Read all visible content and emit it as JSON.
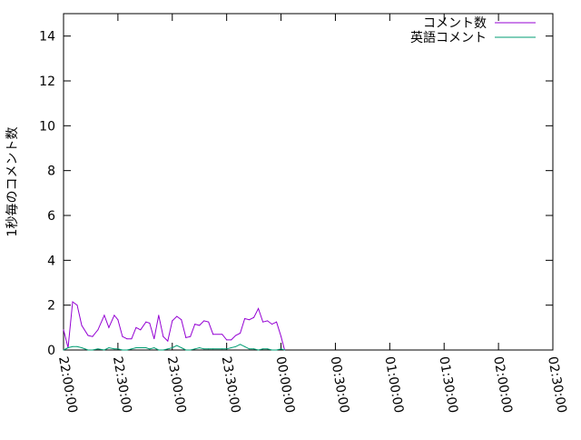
{
  "chart_data": {
    "type": "line",
    "title": "",
    "xlabel": "",
    "ylabel": "1秒毎のコメント数",
    "ylim": [
      0,
      15
    ],
    "xlim": [
      "22:00:00",
      "02:30:00"
    ],
    "yticks": [
      "0",
      "2",
      "4",
      "6",
      "8",
      "10",
      "12",
      "14"
    ],
    "xticks": [
      "22:00:00",
      "22:30:00",
      "23:00:00",
      "23:30:00",
      "00:00:00",
      "00:30:00",
      "01:00:00",
      "01:30:00",
      "02:00:00",
      "02:30:00"
    ],
    "grid": false,
    "legend_position": "top-right",
    "series": [
      {
        "name": "コメント数",
        "color": "#9400d3",
        "x": [
          "22:00:00",
          "22:02:30",
          "22:05:00",
          "22:07:30",
          "22:10:00",
          "22:13:30",
          "22:16:00",
          "22:19:00",
          "22:22:30",
          "22:25:00",
          "22:28:00",
          "22:30:00",
          "22:32:30",
          "22:35:00",
          "22:37:30",
          "22:40:00",
          "22:42:30",
          "22:45:30",
          "22:47:30",
          "22:50:00",
          "22:52:30",
          "22:55:00",
          "22:57:30",
          "23:00:00",
          "23:02:30",
          "23:05:00",
          "23:07:30",
          "23:10:00",
          "23:12:30",
          "23:15:00",
          "23:17:30",
          "23:20:00",
          "23:22:30",
          "23:27:30",
          "23:30:00",
          "23:32:30",
          "23:35:00",
          "23:37:30",
          "23:40:00",
          "23:42:30",
          "23:45:00",
          "23:47:30",
          "23:50:00",
          "23:52:30",
          "23:55:00",
          "23:57:30",
          "00:00:00",
          "00:02:00"
        ],
        "y": [
          0.9,
          0.1,
          2.15,
          2.0,
          1.1,
          0.65,
          0.6,
          0.9,
          1.55,
          1.0,
          1.55,
          1.35,
          0.6,
          0.5,
          0.5,
          1.0,
          0.9,
          1.25,
          1.2,
          0.5,
          1.55,
          0.6,
          0.4,
          1.3,
          1.5,
          1.35,
          0.55,
          0.6,
          1.15,
          1.1,
          1.3,
          1.25,
          0.7,
          0.7,
          0.45,
          0.45,
          0.65,
          0.75,
          1.4,
          1.35,
          1.45,
          1.85,
          1.25,
          1.3,
          1.15,
          1.25,
          0.6,
          0.0
        ]
      },
      {
        "name": "英語コメント",
        "color": "#009e73",
        "x": [
          "22:00:00",
          "22:02:30",
          "22:05:00",
          "22:07:30",
          "22:10:00",
          "22:13:30",
          "22:16:00",
          "22:19:00",
          "22:22:30",
          "22:25:00",
          "22:28:00",
          "22:30:00",
          "22:32:30",
          "22:35:00",
          "22:37:30",
          "22:40:00",
          "22:42:30",
          "22:45:30",
          "22:47:30",
          "22:50:00",
          "22:52:30",
          "22:55:00",
          "22:57:30",
          "23:00:00",
          "23:02:30",
          "23:05:00",
          "23:07:30",
          "23:10:00",
          "23:12:30",
          "23:15:00",
          "23:17:30",
          "23:20:00",
          "23:22:30",
          "23:27:30",
          "23:30:00",
          "23:32:30",
          "23:35:00",
          "23:37:30",
          "23:40:00",
          "23:42:30",
          "23:45:00",
          "23:47:30",
          "23:50:00",
          "23:52:30",
          "23:55:00",
          "23:57:30",
          "00:00:00",
          "00:02:00"
        ],
        "y": [
          0.0,
          0.1,
          0.15,
          0.15,
          0.1,
          0.0,
          0.0,
          0.05,
          0.0,
          0.1,
          0.05,
          0.05,
          0.0,
          0.0,
          0.05,
          0.1,
          0.1,
          0.1,
          0.05,
          0.1,
          0.0,
          0.0,
          0.05,
          0.1,
          0.2,
          0.1,
          0.0,
          0.0,
          0.05,
          0.1,
          0.05,
          0.05,
          0.05,
          0.05,
          0.05,
          0.1,
          0.15,
          0.25,
          0.15,
          0.05,
          0.05,
          0.0,
          0.05,
          0.05,
          0.0,
          0.0,
          0.05,
          0.0
        ]
      }
    ]
  }
}
